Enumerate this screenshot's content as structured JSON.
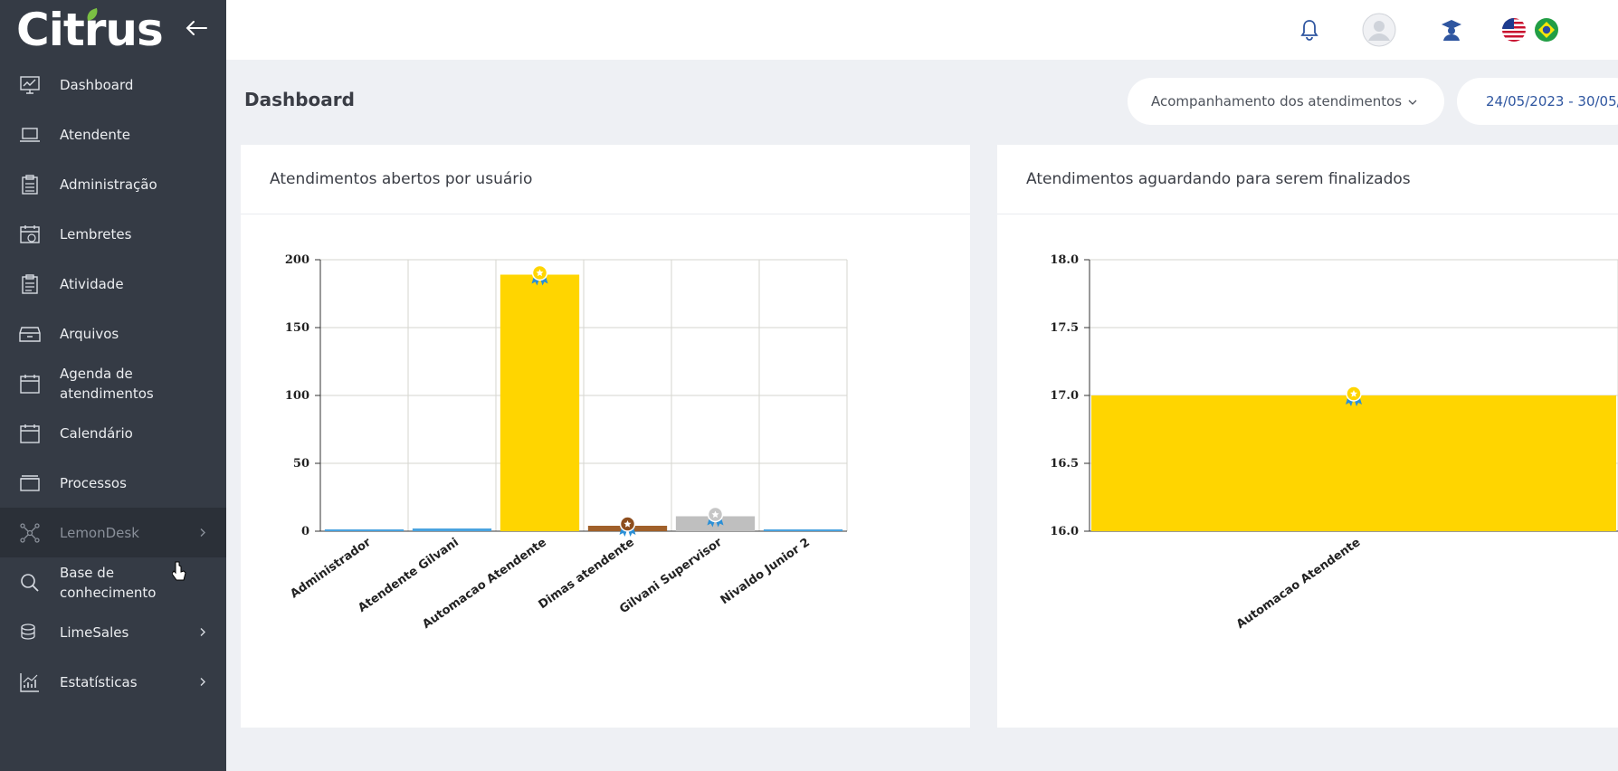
{
  "brand": {
    "logo_text": "Citrus"
  },
  "sidebar": {
    "items": [
      {
        "label": "Dashboard",
        "icon": "chart-line-icon"
      },
      {
        "label": "Atendente",
        "icon": "laptop-icon"
      },
      {
        "label": "Administração",
        "icon": "clipboard-icon"
      },
      {
        "label": "Lembretes",
        "icon": "calendar-clock-icon"
      },
      {
        "label": "Atividade",
        "icon": "clipboard-list-icon"
      },
      {
        "label": "Arquivos",
        "icon": "archive-icon"
      },
      {
        "label": "Agenda de atendimentos",
        "icon": "calendar-icon"
      },
      {
        "label": "Calendário",
        "icon": "calendar-icon"
      },
      {
        "label": "Processos",
        "icon": "folder-icon"
      },
      {
        "label": "LemonDesk",
        "icon": "network-icon",
        "has_submenu": true,
        "active": true
      },
      {
        "label": "Base de conhecimento",
        "icon": "search-icon"
      },
      {
        "label": "LimeSales",
        "icon": "coins-icon",
        "has_submenu": true
      },
      {
        "label": "Estatísticas",
        "icon": "stats-icon",
        "has_submenu": true
      }
    ]
  },
  "topbar": {
    "icons": [
      "bell-icon",
      "avatar-icon",
      "graduate-icon",
      "us-flag-icon",
      "brazil-flag-icon"
    ]
  },
  "page": {
    "title": "Dashboard",
    "view_select": "Acompanhamento dos atendimentos",
    "date_range": "24/05/2023 - 30/05/"
  },
  "colors": {
    "sidebar_bg": "#353b45",
    "gold": "#ffd500",
    "silver": "#bfbfbf",
    "bronze": "#a0602a",
    "blue_bar": "#4aa3df",
    "accent_blue": "#2f56a0"
  },
  "chart_data": [
    {
      "type": "bar",
      "title": "Atendimentos abertos por usuário",
      "categories": [
        "Administrador",
        "Atendente Gilvani",
        "Automacao Atendente",
        "Dimas atendente",
        "Gilvani Supervisor",
        "Nivaldo Junior 2"
      ],
      "values": [
        1,
        2,
        189,
        4,
        11,
        1
      ],
      "ylim": [
        0,
        200
      ],
      "yticks": [
        "0",
        "50",
        "100",
        "150",
        "200"
      ],
      "grid": true,
      "medals": {
        "Automacao Atendente": "gold",
        "Gilvani Supervisor": "silver",
        "Dimas atendente": "bronze"
      }
    },
    {
      "type": "bar",
      "title": "Atendimentos aguardando para serem finalizados",
      "categories": [
        "Automacao Atendente"
      ],
      "values": [
        17
      ],
      "ylim": [
        16.0,
        18.0
      ],
      "yticks": [
        "16.0",
        "16.5",
        "17.0",
        "17.5",
        "18.0"
      ],
      "grid": true,
      "medals": {
        "Automacao Atendente": "gold"
      }
    }
  ]
}
